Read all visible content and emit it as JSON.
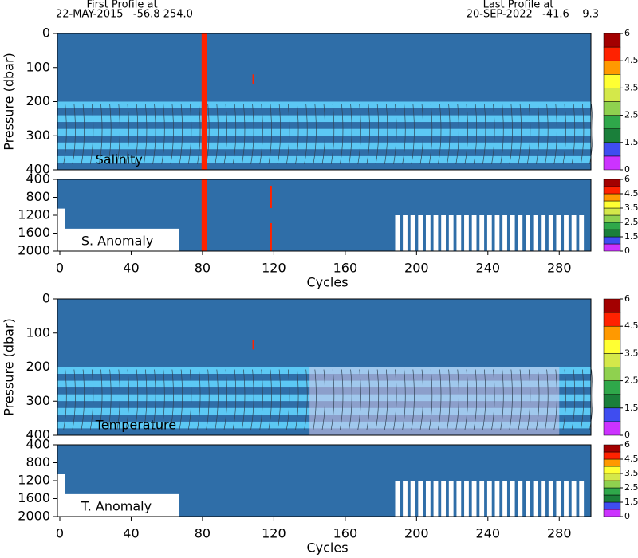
{
  "header": {
    "first_title": "First Profile at",
    "first_info": "22-MAY-2015   -56.8 254.0",
    "last_title": "Last Profile at",
    "last_info": "20-SEP-2022   -41.6    9.3"
  },
  "chart_data": [
    {
      "type": "heatmap",
      "label": "Salinity",
      "ylabel": "Pressure (dbar)",
      "xlim": [
        0,
        300
      ],
      "ylim": [
        0,
        400
      ],
      "yticks": [
        0,
        100,
        200,
        300,
        400
      ],
      "y_reversed": true,
      "colorbar": {
        "colors": [
          "#cc33ff",
          "#3f4df0",
          "#1a7f3a",
          "#2fa84a",
          "#8fd14f",
          "#d4e84a",
          "#ffff33",
          "#ff9900",
          "#ff2200",
          "#a30000"
        ],
        "ticks": [
          0,
          1.5,
          2.5,
          3.5,
          4.5,
          6
        ]
      }
    },
    {
      "type": "heatmap",
      "label": "S. Anomaly",
      "xlabel": "Cycles",
      "xlim": [
        0,
        300
      ],
      "xticks": [
        0,
        40,
        80,
        120,
        160,
        200,
        240,
        280
      ],
      "ylim": [
        400,
        2000
      ],
      "yticks": [
        400,
        800,
        1200,
        1600,
        2000
      ],
      "y_reversed": true,
      "colorbar": {
        "colors": [
          "#cc33ff",
          "#3f4df0",
          "#1a7f3a",
          "#2fa84a",
          "#8fd14f",
          "#d4e84a",
          "#ffff33",
          "#ff9900",
          "#ff2200",
          "#a30000"
        ],
        "ticks": [
          0,
          1.5,
          2.5,
          3.5,
          4.5,
          6
        ]
      }
    },
    {
      "type": "heatmap",
      "label": "Temperature",
      "ylabel": "Pressure (dbar)",
      "xlim": [
        0,
        300
      ],
      "ylim": [
        0,
        400
      ],
      "yticks": [
        0,
        100,
        200,
        300,
        400
      ],
      "y_reversed": true,
      "colorbar": {
        "colors": [
          "#cc33ff",
          "#3f4df0",
          "#1a7f3a",
          "#2fa84a",
          "#8fd14f",
          "#d4e84a",
          "#ffff33",
          "#ff9900",
          "#ff2200",
          "#a30000"
        ],
        "ticks": [
          0,
          1.5,
          2.5,
          3.5,
          4.5,
          6
        ]
      }
    },
    {
      "type": "heatmap",
      "label": "T. Anomaly",
      "xlabel": "Cycles",
      "xlim": [
        0,
        300
      ],
      "xticks": [
        0,
        40,
        80,
        120,
        160,
        200,
        240,
        280
      ],
      "ylim": [
        400,
        2000
      ],
      "yticks": [
        400,
        800,
        1200,
        1600,
        2000
      ],
      "y_reversed": true,
      "colorbar": {
        "colors": [
          "#cc33ff",
          "#3f4df0",
          "#1a7f3a",
          "#2fa84a",
          "#8fd14f",
          "#d4e84a",
          "#ffff33",
          "#ff9900",
          "#ff2200",
          "#a30000"
        ],
        "ticks": [
          0,
          1.5,
          2.5,
          3.5,
          4.5,
          6
        ]
      }
    }
  ]
}
